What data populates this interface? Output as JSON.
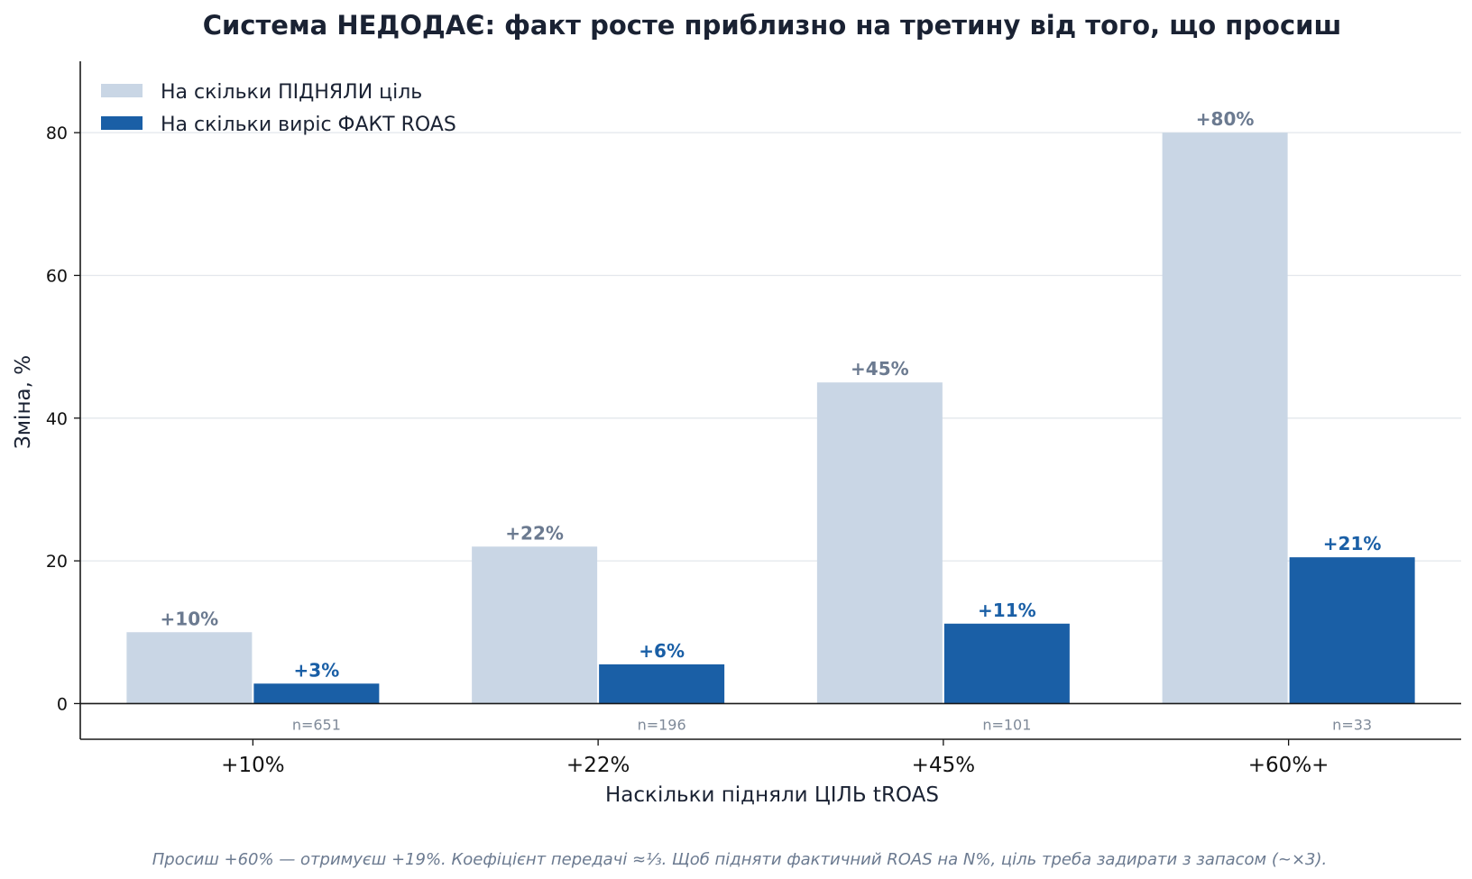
{
  "chart_data": {
    "type": "bar",
    "title": "Система НЕДОДАЄ: факт росте приблизно на третину від того, що просиш",
    "xlabel": "Наскільки підняли ЦІЛЬ tROAS",
    "ylabel": "Зміна, %",
    "ylim": [
      -5,
      90
    ],
    "yticks": [
      0,
      20,
      40,
      60,
      80
    ],
    "categories": [
      "+10%",
      "+22%",
      "+45%",
      "+60%+"
    ],
    "series": [
      {
        "name": "На скільки ПІДНЯЛИ ціль",
        "color": "#c9d6e5",
        "label_color": "#6b7a90",
        "values": [
          10,
          22,
          45,
          80
        ],
        "labels": [
          "+10%",
          "+22%",
          "+45%",
          "+80%"
        ]
      },
      {
        "name": "На скільки виріс ФАКТ ROAS",
        "color": "#1a5fa6",
        "label_color": "#1a5fa6",
        "values": [
          2.8,
          5.5,
          11.2,
          20.5
        ],
        "labels": [
          "+3%",
          "+6%",
          "+11%",
          "+21%"
        ]
      }
    ],
    "sample_sizes": [
      "n=651",
      "n=196",
      "n=101",
      "n=33"
    ],
    "grid": "horizontal",
    "legend_position": "top-left",
    "footnote": "Просиш +60% — отримуєш +19%. Коефіцієнт передачі ≈⅓. Щоб підняти фактичний ROAS на N%, ціль треба задирати з запасом (~×3)."
  }
}
